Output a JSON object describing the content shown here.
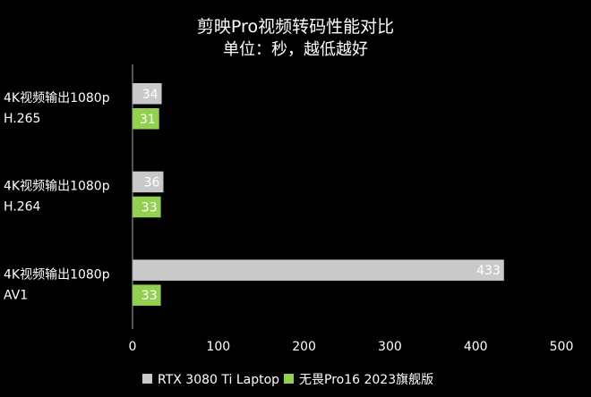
{
  "chart_data": {
    "type": "bar",
    "orientation": "horizontal",
    "title": "剪映Pro视频转码性能对比",
    "subtitle": "单位：秒，越低越好",
    "categories": [
      [
        "4K视频输出1080p",
        "H.265"
      ],
      [
        "4K视频输出1080p",
        "H.264"
      ],
      [
        "4K视频输出1080p",
        "AV1"
      ]
    ],
    "series": [
      {
        "name": "RTX 3080 Ti Laptop",
        "values": [
          34,
          36,
          433
        ],
        "color": "#c9c9c9"
      },
      {
        "name": "无畏Pro16 2023旗舰版",
        "values": [
          31,
          33,
          33
        ],
        "color": "#92d050"
      }
    ],
    "xlim": [
      0,
      500
    ],
    "xticks": [
      "0",
      "100",
      "200",
      "300",
      "400",
      "500"
    ],
    "grid": false,
    "legend": "bottom"
  }
}
